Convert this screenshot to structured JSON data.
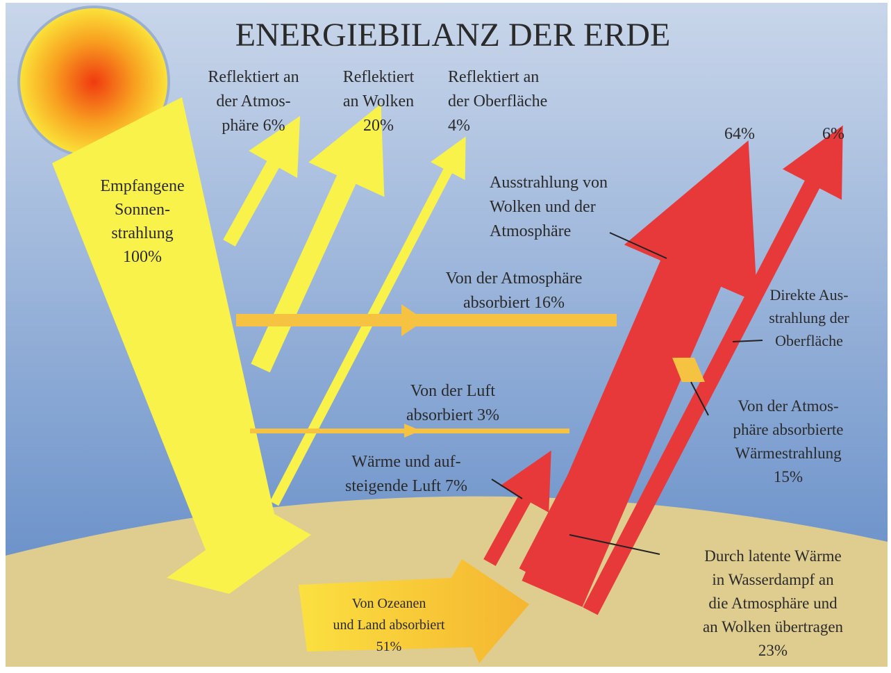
{
  "title": "ENERGIEBILANZ DER ERDE",
  "labels": {
    "received": [
      "Empfangene",
      "Sonnen-",
      "strahlung",
      "100%"
    ],
    "reflected_atmosphere": [
      "Reflektiert an",
      "der Atmos-",
      "phäre 6%"
    ],
    "reflected_clouds": [
      "Reflektiert",
      "an Wolken",
      "20%"
    ],
    "reflected_surface": [
      "Reflektiert an",
      "der Oberfläche",
      "4%"
    ],
    "emission_top": [
      "64%"
    ],
    "direct_top": [
      "6%"
    ],
    "emission_clouds": [
      "Ausstrahlung von",
      "Wolken und der",
      "Atmosphäre"
    ],
    "absorbed_atmosphere": [
      "Von der Atmosphäre",
      "absorbiert 16%"
    ],
    "direct_surface": [
      "Direkte Aus-",
      "strahlung der",
      "Oberfläche"
    ],
    "absorbed_air": [
      "Von der Luft",
      "absorbiert 3%"
    ],
    "absorbed_heat": [
      "Von der Atmos-",
      "phäre absorbierte",
      "Wärmestrahlung",
      "15%"
    ],
    "heat_air": [
      "Wärme und auf-",
      "steigende Luft 7%"
    ],
    "latent": [
      "Durch latente Wärme",
      "in Wasserdampf an",
      "die Atmosphäre und",
      "an Wolken übertragen",
      "23%"
    ],
    "absorbed_ground": [
      "Von Ozeanen",
      "und Land absorbiert",
      "51%"
    ]
  }
}
